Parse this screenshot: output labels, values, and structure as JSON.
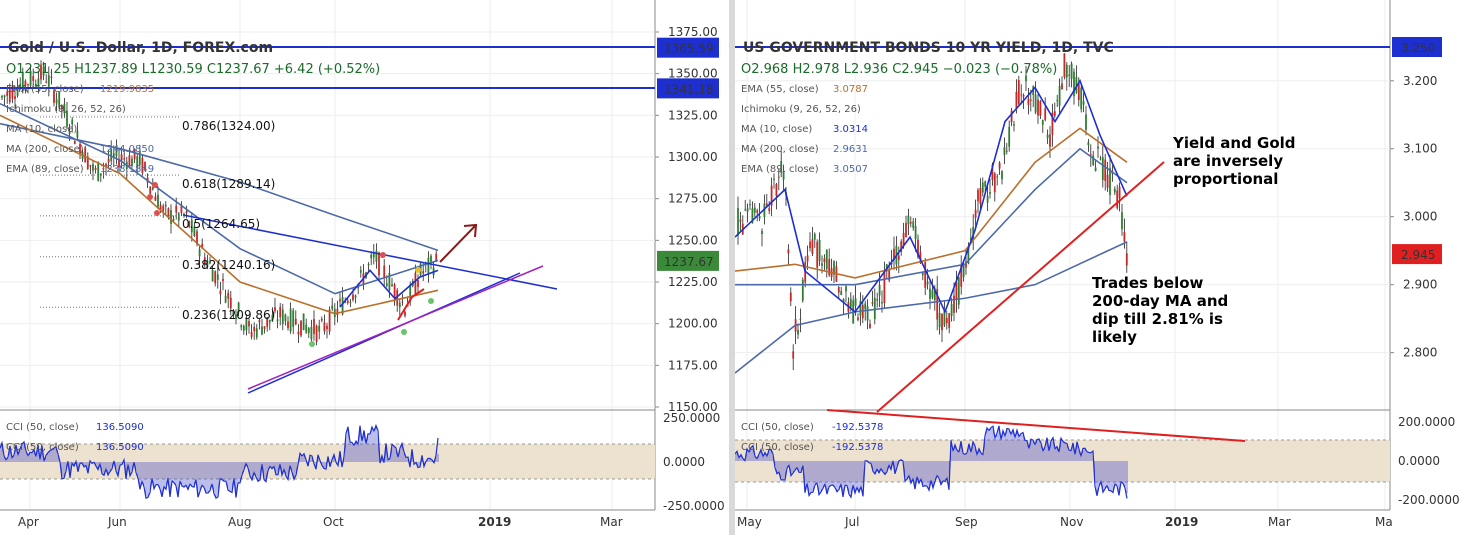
{
  "left": {
    "title": "Gold / U.S. Dollar, 1D, FOREX.com",
    "ohlc": "O1231.25  H1237.89  L1230.59  C1237.67  +6.42 (+0.52%)",
    "indicators": [
      {
        "name": "EMA (55, close)",
        "value": "1219.9835",
        "color": "#b8702c"
      },
      {
        "name": "Ichimoku (9, 26, 52, 26)",
        "value": "",
        "color": "#b8702c"
      },
      {
        "name": "MA (10, close)",
        "value": "",
        "color": "#1d2fd0"
      },
      {
        "name": "MA (200, close)",
        "value": "1244.0850",
        "color": "#4c6aa9"
      },
      {
        "name": "EMA (89, close)",
        "value": "1238.1849",
        "color": "#4c6aa9"
      }
    ],
    "fib_labels": [
      "0.786(1324.00)",
      "0.618(1289.14)",
      "0.5(1264.65)",
      "0.382(1240.16)",
      "0.236(1209.86)"
    ],
    "price_ticks": [
      "1375.00",
      "1350.00",
      "1325.00",
      "1300.00",
      "1275.00",
      "1250.00",
      "1225.00",
      "1200.00",
      "1175.00",
      "1150.00"
    ],
    "badges": [
      {
        "label": "1365.59",
        "value": 1365.59,
        "bg": "#1d2fd0"
      },
      {
        "label": "1341.18",
        "value": 1341.18,
        "bg": "#1d2fd0"
      },
      {
        "label": "1237.67",
        "value": 1237.67,
        "bg": "#3a8a3a"
      }
    ],
    "x_ticks": [
      "Apr",
      "Jun",
      "Aug",
      "Oct",
      "2019",
      "Mar"
    ],
    "cci_labels": [
      {
        "name": "CCI (50, close)",
        "value": "136.5090"
      },
      {
        "name": "CCI (50, close)",
        "value": "136.5090"
      }
    ],
    "cci_ticks": [
      "250.0000",
      "0.0000",
      "-250.0000"
    ]
  },
  "right": {
    "title": "US GOVERNMENT BONDS 10 YR YIELD, 1D, TVC",
    "ohlc": "O2.968  H2.978  L2.936  C2.945  −0.023 (−0.78%)",
    "indicators": [
      {
        "name": "EMA (55, close)",
        "value": "3.0787",
        "color": "#b8702c"
      },
      {
        "name": "Ichimoku (9, 26, 52, 26)",
        "value": "",
        "color": "#b8702c"
      },
      {
        "name": "MA (10, close)",
        "value": "3.0314",
        "color": "#1d2fd0"
      },
      {
        "name": "MA (200, close)",
        "value": "2.9631",
        "color": "#4c6aa9"
      },
      {
        "name": "EMA (89, close)",
        "value": "3.0507",
        "color": "#4c6aa9"
      }
    ],
    "price_ticks": [
      "3.200",
      "3.100",
      "3.000",
      "2.900",
      "2.800"
    ],
    "badges": [
      {
        "label": "3.250",
        "value": 3.25,
        "bg": "#1d2fd0"
      },
      {
        "label": "2.945",
        "value": 2.945,
        "bg": "#e02020"
      }
    ],
    "x_ticks": [
      "May",
      "Jul",
      "Sep",
      "Nov",
      "2019",
      "Mar",
      "Ma"
    ],
    "cci_labels": [
      {
        "name": "CCI (50, close)",
        "value": "-192.5378"
      },
      {
        "name": "CCI (50, close)",
        "value": "-192.5378"
      }
    ],
    "cci_ticks": [
      "200.0000",
      "0.0000",
      "-200.0000"
    ],
    "annotations": {
      "note1": [
        "Yield and Gold",
        "are inversely",
        "proportional"
      ],
      "note2": [
        "Trades below",
        "200-day MA and",
        "dip till 2.81% is",
        "likely"
      ]
    }
  },
  "chart_data": [
    {
      "type": "candlestick",
      "title": "Gold / U.S. Dollar, 1D, FOREX.com",
      "x_range": [
        "Mar 2018",
        "Mar 2019"
      ],
      "ylim": [
        1150,
        1375
      ],
      "series": [
        {
          "name": "price",
          "x": [
            "Apr",
            "May",
            "Jun",
            "Jul",
            "Aug",
            "Sep",
            "Oct",
            "Nov"
          ],
          "values": [
            1335,
            1305,
            1298,
            1240,
            1215,
            1196,
            1205,
            1225
          ]
        },
        {
          "name": "MA (200, close)",
          "x": [
            "Apr",
            "Jun",
            "Aug",
            "Oct",
            "Nov"
          ],
          "values": [
            1320,
            1305,
            1290,
            1262,
            1244
          ]
        },
        {
          "name": "EMA (55, close)",
          "x": [
            "Apr",
            "Jun",
            "Aug",
            "Oct",
            "Nov"
          ],
          "values": [
            1325,
            1290,
            1230,
            1206,
            1220
          ]
        },
        {
          "name": "EMA (89, close)",
          "x": [
            "Apr",
            "Jun",
            "Aug",
            "Oct",
            "Nov"
          ],
          "values": [
            1332,
            1300,
            1250,
            1218,
            1238
          ]
        }
      ],
      "fibonacci": [
        {
          "level": "0.786",
          "value": 1324.0
        },
        {
          "level": "0.618",
          "value": 1289.14
        },
        {
          "level": "0.5",
          "value": 1264.65
        },
        {
          "level": "0.382",
          "value": 1240.16
        },
        {
          "level": "0.236",
          "value": 1209.86
        }
      ],
      "horizontal_lines": [
        1365.59,
        1341.18
      ],
      "last_price": 1237.67,
      "trendlines": [
        "upper falling line from ~1268 (Jul) to ~1220 (Jan)",
        "rising support from ~1160 (Aug) to ~1232 (Jan)"
      ],
      "indicator": {
        "name": "CCI (50, close)",
        "last": 136.509,
        "ylim": [
          -250,
          250
        ]
      }
    },
    {
      "type": "candlestick",
      "title": "US GOVERNMENT BONDS 10 YR YIELD, 1D, TVC",
      "x_range": [
        "May 2018",
        "May 2019"
      ],
      "ylim": [
        2.72,
        3.26
      ],
      "series": [
        {
          "name": "price",
          "x": [
            "May",
            "Jun",
            "Jul",
            "Aug",
            "Sep",
            "Oct",
            "Nov",
            "Dec"
          ],
          "values": [
            3.0,
            2.92,
            2.86,
            2.88,
            3.05,
            3.22,
            3.1,
            2.95
          ]
        },
        {
          "name": "MA (200, close)",
          "x": [
            "May",
            "Jul",
            "Sep",
            "Nov",
            "Dec"
          ],
          "values": [
            2.77,
            2.85,
            2.88,
            2.92,
            2.963
          ]
        },
        {
          "name": "EMA (55, close)",
          "x": [
            "May",
            "Jul",
            "Sep",
            "Nov",
            "Dec"
          ],
          "values": [
            2.95,
            2.92,
            2.97,
            3.12,
            3.08
          ]
        },
        {
          "name": "MA (10, close)",
          "x": [
            "May",
            "Jul",
            "Sep",
            "Nov",
            "Dec"
          ],
          "values": [
            3.0,
            2.86,
            2.95,
            3.18,
            3.03
          ]
        }
      ],
      "horizontal_lines": [
        3.25
      ],
      "last_price": 2.945,
      "indicator": {
        "name": "CCI (50, close)",
        "last": -192.5378,
        "ylim": [
          -200,
          200
        ]
      }
    }
  ]
}
